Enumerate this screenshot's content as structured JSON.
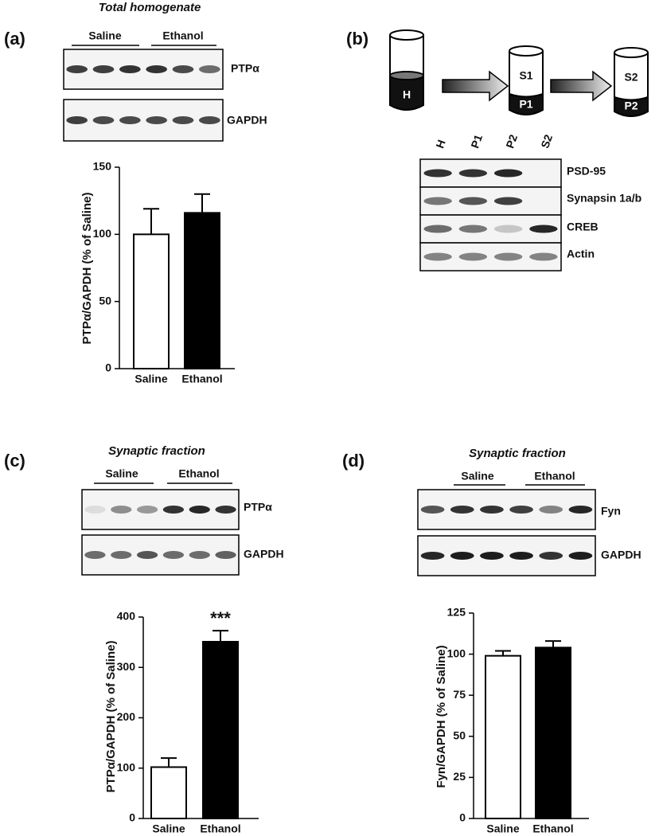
{
  "chart_data": [
    {
      "type": "bar",
      "ylabel": "PTPα/GAPDH (% of Saline)",
      "categories": [
        "Saline",
        "Ethanol"
      ],
      "values": [
        100,
        116
      ],
      "errors": [
        19,
        14
      ],
      "colors": [
        "#ffffff",
        "#000000"
      ],
      "ylim": [
        0,
        150
      ],
      "yticks": [
        0,
        50,
        100,
        150
      ]
    },
    {
      "type": "bar",
      "ylabel": "PTPα/GAPDH (% of Saline)",
      "categories": [
        "Saline",
        "Ethanol"
      ],
      "values": [
        102,
        351
      ],
      "errors": [
        18,
        22
      ],
      "colors": [
        "#ffffff",
        "#000000"
      ],
      "ylim": [
        0,
        400
      ],
      "yticks": [
        0,
        100,
        200,
        300,
        400
      ],
      "annotation": "***"
    },
    {
      "type": "bar",
      "ylabel": "Fyn/GAPDH (% of Saline)",
      "categories": [
        "Saline",
        "Ethanol"
      ],
      "values": [
        99,
        104
      ],
      "errors": [
        3,
        4
      ],
      "colors": [
        "#ffffff",
        "#000000"
      ],
      "ylim": [
        0,
        125
      ],
      "yticks": [
        0,
        25,
        50,
        75,
        100,
        125
      ]
    }
  ],
  "panels": {
    "a": {
      "label": "(a)",
      "title": "Total homogenate",
      "groups": [
        "Saline",
        "Ethanol"
      ],
      "blots": [
        "PTPα",
        "GAPDH"
      ]
    },
    "b": {
      "label": "(b)",
      "tubes": [
        "H",
        "S1",
        "P1",
        "S2",
        "P2"
      ],
      "lanes": [
        "H",
        "P1",
        "P2",
        "S2"
      ],
      "proteins": [
        "PSD-95",
        "Synapsin 1a/b",
        "CREB",
        "Actin"
      ]
    },
    "c": {
      "label": "(c)",
      "title": "Synaptic fraction",
      "groups": [
        "Saline",
        "Ethanol"
      ],
      "blots": [
        "PTPα",
        "GAPDH"
      ]
    },
    "d": {
      "label": "(d)",
      "title": "Synaptic fraction",
      "groups": [
        "Saline",
        "Ethanol"
      ],
      "blots": [
        "Fyn",
        "GAPDH"
      ]
    }
  }
}
